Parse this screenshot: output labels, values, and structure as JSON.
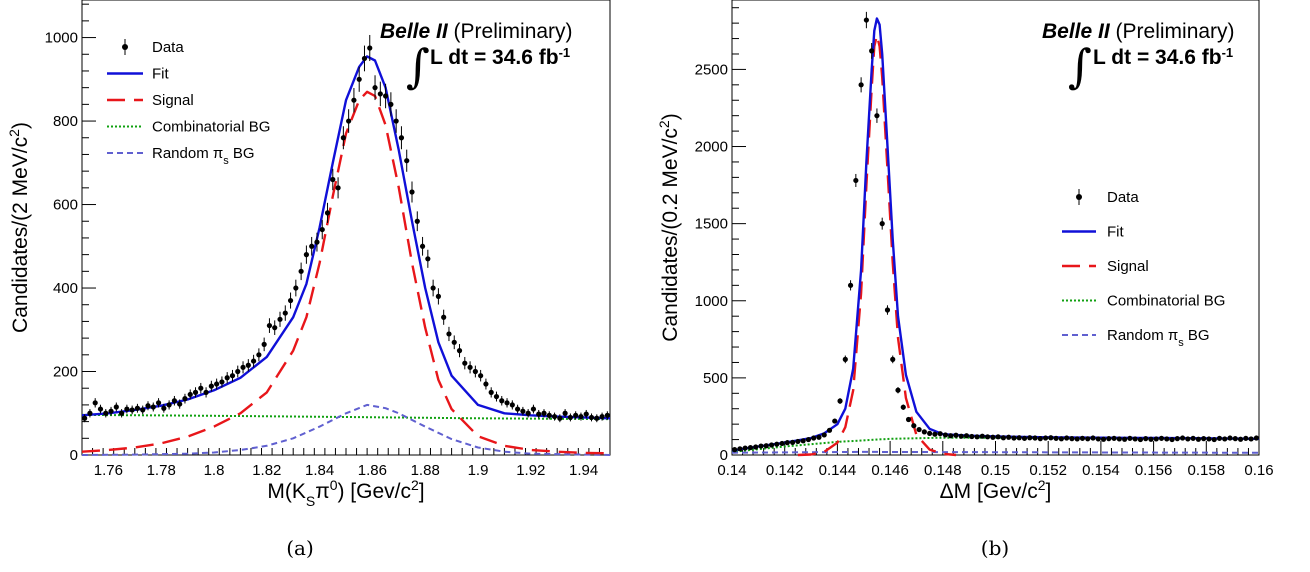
{
  "colors": {
    "data": "#000000",
    "fit": "#1010d8",
    "signal": "#e8161a",
    "combinatorial": "#10a010",
    "random": "#6060d0"
  },
  "chart_data": [
    {
      "type": "line",
      "caption": "(a)",
      "xlabel": "M(K",
      "xlabel_sub": "S",
      "xlabel_rest": "π",
      "xlabel_sup": "0",
      "xlabel_unit": ") [Gev/c",
      "xlabel_unit_sup": "2",
      "xlabel_end": "]",
      "ylabel": "Candidates/(2 MeV/c",
      "ylabel_sup": "2",
      "ylabel_end": ")",
      "xlim": [
        1.75,
        1.95
      ],
      "ylim": [
        0,
        1090
      ],
      "xticks": [
        1.76,
        1.78,
        1.8,
        1.82,
        1.84,
        1.86,
        1.88,
        1.9,
        1.92,
        1.94
      ],
      "xtick_labels": [
        "1.76",
        "1.78",
        "1.8",
        "1.82",
        "1.84",
        "1.86",
        "1.88",
        "1.9",
        "1.92",
        "1.94"
      ],
      "yticks": [
        0,
        200,
        400,
        600,
        800,
        1000
      ],
      "ytick_labels": [
        "0",
        "200",
        "400",
        "600",
        "800",
        "1000"
      ],
      "experiment": "Belle II",
      "status": "(Preliminary)",
      "luminosity_prefix": "L dt = 34.6 fb",
      "luminosity_sup": "-1",
      "legend_position": "top-left",
      "legend": [
        {
          "key": "data",
          "label": "Data",
          "sub": ""
        },
        {
          "key": "fit",
          "label": "Fit",
          "sub": ""
        },
        {
          "key": "signal",
          "label": "Signal",
          "sub": ""
        },
        {
          "key": "combinatorial",
          "label": "Combinatorial BG",
          "sub": ""
        },
        {
          "key": "random",
          "label": "Random π",
          "sub": "s",
          "after": " BG"
        }
      ],
      "series": [
        {
          "key": "fit",
          "style": "solid",
          "x": [
            1.75,
            1.76,
            1.77,
            1.78,
            1.79,
            1.8,
            1.81,
            1.82,
            1.83,
            1.835,
            1.84,
            1.845,
            1.85,
            1.855,
            1.858,
            1.861,
            1.865,
            1.87,
            1.875,
            1.88,
            1.885,
            1.89,
            1.9,
            1.91,
            1.92,
            1.93,
            1.94,
            1.95
          ],
          "y": [
            95,
            100,
            108,
            118,
            133,
            155,
            185,
            235,
            330,
            410,
            545,
            700,
            850,
            930,
            955,
            945,
            880,
            730,
            560,
            400,
            270,
            190,
            120,
            100,
            95,
            92,
            90,
            88
          ]
        },
        {
          "key": "signal",
          "style": "long-dash",
          "x": [
            1.75,
            1.76,
            1.77,
            1.78,
            1.79,
            1.8,
            1.81,
            1.82,
            1.83,
            1.835,
            1.84,
            1.845,
            1.85,
            1.855,
            1.858,
            1.861,
            1.865,
            1.87,
            1.875,
            1.88,
            1.885,
            1.89,
            1.9,
            1.91,
            1.92,
            1.93,
            1.94,
            1.95
          ],
          "y": [
            8,
            12,
            18,
            28,
            44,
            68,
            100,
            150,
            250,
            330,
            460,
            620,
            770,
            850,
            870,
            860,
            790,
            640,
            460,
            305,
            180,
            110,
            45,
            22,
            12,
            8,
            5,
            4
          ]
        },
        {
          "key": "combinatorial",
          "style": "dotted",
          "x": [
            1.75,
            1.8,
            1.85,
            1.9,
            1.95
          ],
          "y": [
            96,
            94,
            91,
            88,
            86
          ]
        },
        {
          "key": "random",
          "style": "short-dash",
          "x": [
            1.75,
            1.77,
            1.79,
            1.8,
            1.81,
            1.82,
            1.83,
            1.84,
            1.85,
            1.858,
            1.865,
            1.87,
            1.88,
            1.89,
            1.9,
            1.91,
            1.92,
            1.95
          ],
          "y": [
            0,
            1,
            3,
            6,
            12,
            22,
            40,
            68,
            100,
            120,
            112,
            100,
            68,
            38,
            18,
            8,
            3,
            0
          ]
        }
      ],
      "data_points": {
        "x": [
          1.751,
          1.753,
          1.755,
          1.757,
          1.759,
          1.761,
          1.763,
          1.765,
          1.767,
          1.769,
          1.771,
          1.773,
          1.775,
          1.777,
          1.779,
          1.781,
          1.783,
          1.785,
          1.787,
          1.789,
          1.791,
          1.793,
          1.795,
          1.797,
          1.799,
          1.801,
          1.803,
          1.805,
          1.807,
          1.809,
          1.811,
          1.813,
          1.815,
          1.817,
          1.819,
          1.821,
          1.823,
          1.825,
          1.827,
          1.829,
          1.831,
          1.833,
          1.835,
          1.837,
          1.839,
          1.841,
          1.843,
          1.845,
          1.847,
          1.849,
          1.851,
          1.853,
          1.855,
          1.857,
          1.859,
          1.861,
          1.863,
          1.865,
          1.867,
          1.869,
          1.871,
          1.873,
          1.875,
          1.877,
          1.879,
          1.881,
          1.883,
          1.885,
          1.887,
          1.889,
          1.891,
          1.893,
          1.895,
          1.897,
          1.899,
          1.901,
          1.903,
          1.905,
          1.907,
          1.909,
          1.911,
          1.913,
          1.915,
          1.917,
          1.919,
          1.921,
          1.923,
          1.925,
          1.927,
          1.929,
          1.931,
          1.933,
          1.935,
          1.937,
          1.939,
          1.941,
          1.943,
          1.945,
          1.947,
          1.949
        ],
        "y": [
          88,
          100,
          125,
          110,
          100,
          105,
          115,
          100,
          110,
          108,
          112,
          108,
          118,
          115,
          125,
          112,
          120,
          130,
          122,
          135,
          145,
          150,
          160,
          150,
          165,
          170,
          175,
          185,
          190,
          200,
          210,
          215,
          225,
          240,
          265,
          310,
          305,
          325,
          340,
          370,
          400,
          440,
          480,
          500,
          510,
          540,
          580,
          660,
          640,
          760,
          800,
          850,
          900,
          950,
          975,
          880,
          865,
          860,
          840,
          800,
          760,
          705,
          630,
          560,
          500,
          470,
          400,
          380,
          330,
          290,
          270,
          250,
          220,
          210,
          200,
          190,
          170,
          150,
          140,
          130,
          125,
          120,
          110,
          105,
          100,
          110,
          98,
          100,
          95,
          92,
          88,
          100,
          90,
          95,
          92,
          98,
          90,
          88,
          92,
          95
        ]
      }
    },
    {
      "type": "line",
      "caption": "(b)",
      "xlabel": "ΔM [Gev/c",
      "xlabel_sup": "2",
      "xlabel_end": "]",
      "ylabel": "Candidates/(0.2 MeV/c",
      "ylabel_sup": "2",
      "ylabel_end": ")",
      "xlim": [
        0.14,
        0.16
      ],
      "ylim": [
        0,
        2950
      ],
      "xticks": [
        0.14,
        0.142,
        0.144,
        0.146,
        0.148,
        0.15,
        0.152,
        0.154,
        0.156,
        0.158,
        0.16
      ],
      "xtick_labels": [
        "0.14",
        "0.142",
        "0.144",
        "0.146",
        "0.148",
        "0.15",
        "0.152",
        "0.154",
        "0.156",
        "0.158",
        "0.16"
      ],
      "yticks": [
        0,
        500,
        1000,
        1500,
        2000,
        2500
      ],
      "ytick_labels": [
        "0",
        "500",
        "1000",
        "1500",
        "2000",
        "2500"
      ],
      "experiment": "Belle II",
      "status": "(Preliminary)",
      "luminosity_prefix": "L dt = 34.6 fb",
      "luminosity_sup": "-1",
      "legend_position": "right",
      "legend": [
        {
          "key": "data",
          "label": "Data",
          "sub": ""
        },
        {
          "key": "fit",
          "label": "Fit",
          "sub": ""
        },
        {
          "key": "signal",
          "label": "Signal",
          "sub": ""
        },
        {
          "key": "combinatorial",
          "label": "Combinatorial BG",
          "sub": ""
        },
        {
          "key": "random",
          "label": "Random π",
          "sub": "s",
          "after": " BG"
        }
      ],
      "series": [
        {
          "key": "fit",
          "style": "solid",
          "x": [
            0.14,
            0.141,
            0.142,
            0.143,
            0.1435,
            0.144,
            0.1443,
            0.1446,
            0.1449,
            0.1451,
            0.1453,
            0.1454,
            0.1455,
            0.1456,
            0.1457,
            0.1459,
            0.1461,
            0.1463,
            0.1466,
            0.147,
            0.1475,
            0.148,
            0.149,
            0.15,
            0.152,
            0.154,
            0.156,
            0.158,
            0.16
          ],
          "y": [
            30,
            55,
            80,
            110,
            140,
            200,
            300,
            560,
            1200,
            1900,
            2500,
            2750,
            2830,
            2790,
            2600,
            2000,
            1400,
            900,
            520,
            280,
            170,
            135,
            125,
            120,
            115,
            112,
            110,
            108,
            105
          ]
        },
        {
          "key": "signal",
          "style": "long-dash",
          "x": [
            0.1425,
            0.143,
            0.1435,
            0.144,
            0.1443,
            0.1446,
            0.1449,
            0.1451,
            0.1453,
            0.1454,
            0.1455,
            0.1456,
            0.1457,
            0.1459,
            0.1461,
            0.1463,
            0.1466,
            0.147,
            0.1475,
            0.148,
            0.1485
          ],
          "y": [
            0,
            3,
            20,
            80,
            180,
            420,
            1050,
            1750,
            2380,
            2650,
            2720,
            2650,
            2450,
            1850,
            1250,
            760,
            370,
            130,
            35,
            8,
            0
          ]
        },
        {
          "key": "combinatorial",
          "style": "dotted",
          "x": [
            0.14,
            0.142,
            0.144,
            0.146,
            0.148,
            0.15,
            0.152,
            0.155,
            0.16
          ],
          "y": [
            20,
            55,
            85,
            105,
            112,
            112,
            110,
            108,
            105
          ]
        },
        {
          "key": "random",
          "style": "short-dash",
          "x": [
            0.14,
            0.145,
            0.15,
            0.155,
            0.16
          ],
          "y": [
            15,
            20,
            18,
            16,
            14
          ]
        }
      ],
      "data_points": {
        "x": [
          0.1401,
          0.1403,
          0.1405,
          0.1407,
          0.1409,
          0.1411,
          0.1413,
          0.1415,
          0.1417,
          0.1419,
          0.1421,
          0.1423,
          0.1425,
          0.1427,
          0.1429,
          0.1431,
          0.1433,
          0.1435,
          0.1437,
          0.1439,
          0.1441,
          0.1443,
          0.1445,
          0.1447,
          0.1449,
          0.1451,
          0.1453,
          0.1455,
          0.1457,
          0.1459,
          0.1461,
          0.1463,
          0.1465,
          0.1467,
          0.1469,
          0.1471,
          0.1473,
          0.1475,
          0.1477,
          0.1479,
          0.1481,
          0.1483,
          0.1485,
          0.1487,
          0.1489,
          0.1491,
          0.1493,
          0.1495,
          0.1497,
          0.1499,
          0.1501,
          0.1503,
          0.1505,
          0.1507,
          0.1509,
          0.1511,
          0.1513,
          0.1515,
          0.1517,
          0.1519,
          0.1521,
          0.1523,
          0.1525,
          0.1527,
          0.1529,
          0.1531,
          0.1533,
          0.1535,
          0.1537,
          0.1539,
          0.1541,
          0.1543,
          0.1545,
          0.1547,
          0.1549,
          0.1551,
          0.1553,
          0.1555,
          0.1557,
          0.1559,
          0.1561,
          0.1563,
          0.1565,
          0.1567,
          0.1569,
          0.1571,
          0.1573,
          0.1575,
          0.1577,
          0.1579,
          0.1581,
          0.1583,
          0.1585,
          0.1587,
          0.1589,
          0.1591,
          0.1593,
          0.1595,
          0.1597,
          0.1599
        ],
        "y": [
          35,
          40,
          45,
          48,
          52,
          58,
          60,
          65,
          70,
          75,
          80,
          82,
          88,
          92,
          100,
          110,
          115,
          130,
          160,
          220,
          350,
          620,
          1100,
          1780,
          2400,
          2820,
          2620,
          2200,
          1500,
          940,
          620,
          420,
          310,
          230,
          190,
          165,
          150,
          140,
          135,
          138,
          130,
          125,
          128,
          122,
          125,
          120,
          118,
          122,
          118,
          115,
          118,
          112,
          115,
          110,
          112,
          108,
          112,
          110,
          106,
          110,
          112,
          108,
          105,
          110,
          106,
          104,
          108,
          105,
          110,
          104,
          102,
          106,
          108,
          104,
          102,
          108,
          104,
          100,
          106,
          102,
          104,
          108,
          104,
          100,
          106,
          110,
          104,
          108,
          102,
          106,
          104,
          100,
          108,
          104,
          110,
          106,
          102,
          108,
          104,
          110
        ]
      }
    }
  ]
}
